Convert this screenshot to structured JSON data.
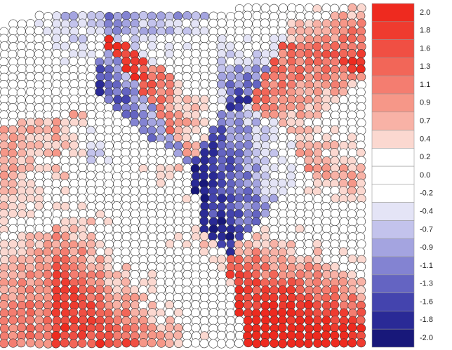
{
  "colorbar": {
    "labels": [
      "2.0",
      "1.8",
      "1.6",
      "1.3",
      "1.1",
      "0.9",
      "0.7",
      "0.4",
      "0.2",
      "0.0",
      "-0.2",
      "-0.4",
      "-0.7",
      "-0.9",
      "-1.1",
      "-1.3",
      "-1.6",
      "-1.8",
      "-2.0"
    ],
    "colors": [
      "#ee2a1f",
      "#ef3b2f",
      "#f04f43",
      "#f26658",
      "#f47d70",
      "#f69788",
      "#f8b2a6",
      "#fbd8d0",
      "#ffffff",
      "#ffffff",
      "#ffffff",
      "#e4e4f6",
      "#c3c3ec",
      "#a4a4e0",
      "#8383d2",
      "#6464c2",
      "#4444ae",
      "#2a2a96",
      "#18187a"
    ]
  }
}
